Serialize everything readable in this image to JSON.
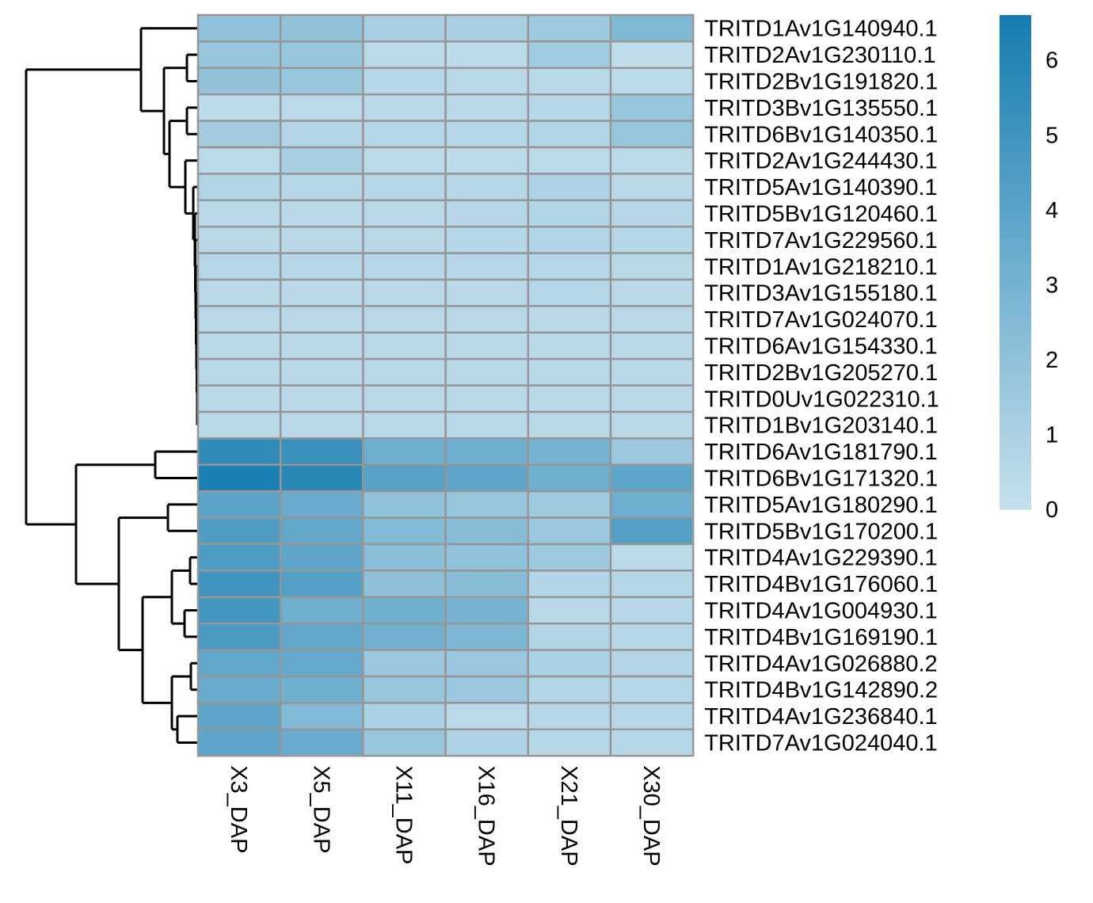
{
  "chart_data": {
    "type": "heatmap",
    "title": "",
    "xlabel": "",
    "ylabel": "",
    "columns": [
      "X3_DAP",
      "X5_DAP",
      "X11_DAP",
      "X16_DAP",
      "X21_DAP",
      "X30_DAP"
    ],
    "rows": [
      "TRITD1Av1G140940.1",
      "TRITD2Av1G230110.1",
      "TRITD2Bv1G191820.1",
      "TRITD3Bv1G135550.1",
      "TRITD6Bv1G140350.1",
      "TRITD2Av1G244430.1",
      "TRITD5Av1G140390.1",
      "TRITD5Bv1G120460.1",
      "TRITD7Av1G229560.1",
      "TRITD1Av1G218210.1",
      "TRITD3Av1G155180.1",
      "TRITD7Av1G024070.1",
      "TRITD6Av1G154330.1",
      "TRITD2Bv1G205270.1",
      "TRITD0Uv1G022310.1",
      "TRITD1Bv1G203140.1",
      "TRITD6Av1G181790.1",
      "TRITD6Bv1G171320.1",
      "TRITD5Av1G180290.1",
      "TRITD5Bv1G170200.1",
      "TRITD4Av1G229390.1",
      "TRITD4Bv1G176060.1",
      "TRITD4Av1G004930.1",
      "TRITD4Bv1G169190.1",
      "TRITD4Av1G026880.2",
      "TRITD4Bv1G142890.2",
      "TRITD4Av1G236840.1",
      "TRITD7Av1G024040.1"
    ],
    "values": [
      [
        2.0,
        1.9,
        1.1,
        1.1,
        1.5,
        2.6
      ],
      [
        1.8,
        1.7,
        0.4,
        0.4,
        1.4,
        0.2
      ],
      [
        1.9,
        1.7,
        0.6,
        0.5,
        0.5,
        0.4
      ],
      [
        0.3,
        0.4,
        0.5,
        0.5,
        0.6,
        1.7
      ],
      [
        1.3,
        0.7,
        0.6,
        0.6,
        0.8,
        1.8
      ],
      [
        0.4,
        1.1,
        0.4,
        0.4,
        0.4,
        0.4
      ],
      [
        0.8,
        0.6,
        0.6,
        0.6,
        0.9,
        0.5
      ],
      [
        0.5,
        0.5,
        0.5,
        0.6,
        0.8,
        0.6
      ],
      [
        0.5,
        0.5,
        0.5,
        0.6,
        0.8,
        0.6
      ],
      [
        0.6,
        0.6,
        0.6,
        0.6,
        0.6,
        0.5
      ],
      [
        0.5,
        0.5,
        0.5,
        0.5,
        0.6,
        0.5
      ],
      [
        0.5,
        0.5,
        0.5,
        0.5,
        0.5,
        0.5
      ],
      [
        0.5,
        0.5,
        0.5,
        0.5,
        0.5,
        0.5
      ],
      [
        0.5,
        0.5,
        0.5,
        0.5,
        0.5,
        0.5
      ],
      [
        0.5,
        0.5,
        0.5,
        0.5,
        0.5,
        0.5
      ],
      [
        0.5,
        0.5,
        0.5,
        0.5,
        0.5,
        0.5
      ],
      [
        5.6,
        5.2,
        3.3,
        3.3,
        3.0,
        1.6
      ],
      [
        6.4,
        5.8,
        4.1,
        3.8,
        3.2,
        3.9
      ],
      [
        4.0,
        3.4,
        2.0,
        1.8,
        1.5,
        3.3
      ],
      [
        4.4,
        3.7,
        2.5,
        2.3,
        1.6,
        4.3
      ],
      [
        4.5,
        3.9,
        2.2,
        2.0,
        1.5,
        0.4
      ],
      [
        5.0,
        4.3,
        2.1,
        2.3,
        0.8,
        0.6
      ],
      [
        4.8,
        3.2,
        3.2,
        2.9,
        0.5,
        0.6
      ],
      [
        4.6,
        3.7,
        3.1,
        2.7,
        0.7,
        0.6
      ],
      [
        3.7,
        3.6,
        1.6,
        1.6,
        1.0,
        0.7
      ],
      [
        3.4,
        3.2,
        1.7,
        1.6,
        0.7,
        0.6
      ],
      [
        3.9,
        2.5,
        1.0,
        0.4,
        0.6,
        0.6
      ],
      [
        3.9,
        3.4,
        1.7,
        0.9,
        0.6,
        0.6
      ]
    ],
    "color_scale": {
      "min": 0,
      "max": 6.6,
      "low_color": "#c6e0ed",
      "high_color": "#157cb0",
      "ticks": [
        "0",
        "1",
        "2",
        "3",
        "4",
        "5",
        "6"
      ]
    },
    "legend_placement": "right",
    "row_dendrogram": true,
    "cell_border_color": "#969696"
  }
}
